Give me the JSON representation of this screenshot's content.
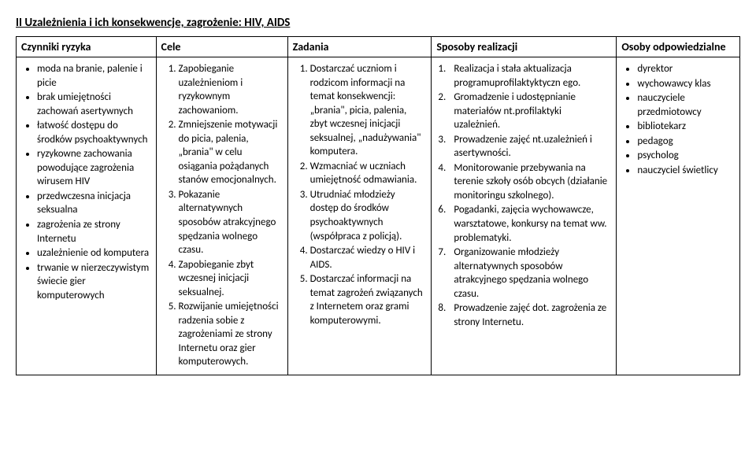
{
  "title": "II Uzależnienia i ich konsekwencje, zagrożenie: HIV, AIDS",
  "headers": {
    "c1": "Czynniki ryzyka",
    "c2": "Cele",
    "c3": "Zadania",
    "c4": "Sposoby realizacji",
    "c5": "Osoby odpowiedzialne"
  },
  "czynniki": [
    "moda na branie, palenie i picie",
    "brak umiejętności zachowań asertywnych",
    "łatwość dostępu do środków psychoaktywnych",
    "ryzykowne zachowania powodujące zagrożenia wirusem HIV",
    "przedwczesna inicjacja seksualna",
    "zagrożenia ze strony Internetu",
    "uzależnienie od komputera",
    "trwanie w nierzeczywistym świecie gier komputerowych"
  ],
  "cele": [
    "Zapobieganie uzależnieniom i ryzykownym zachowaniom.",
    "Zmniejszenie motywacji do picia, palenia, „brania\" w celu osiągania pożądanych stanów emocjonalnych.",
    "Pokazanie alternatywnych sposobów atrakcyjnego spędzania wolnego czasu.",
    "Zapobieganie zbyt wczesnej inicjacji seksualnej.",
    "Rozwijanie umiejętności radzenia sobie z zagrożeniami ze strony Internetu oraz gier komputerowych."
  ],
  "zadania": [
    "Dostarczać uczniom i rodzicom informacji na temat konsekwencji: „brania\", picia, palenia, zbyt wczesnej inicjacji seksualnej, „nadużywania\" komputera.",
    "Wzmacniać w uczniach umiejętność odmawiania.",
    "Utrudniać młodzieży dostęp do środków psychoaktywnych (współpraca z policją).",
    "Dostarczać wiedzy o HIV i AIDS.",
    "Dostarczać informacji na temat zagrożeń związanych z Internetem oraz grami komputerowymi."
  ],
  "sposoby": [
    "Realizacja i stała aktualizacja programuprofilaktyktyczn ego.",
    "Gromadzenie i udostępnianie materiałów nt.profilaktyki uzależnień.",
    "Prowadzenie zajęć nt.uzależnień i asertywności.",
    "Monitorowanie przebywania na terenie szkoły osób obcych (działanie monitoringu szkolnego).",
    "Pogadanki, zajęcia wychowawcze, warsztatowe, konkursy na temat ww. problematyki.",
    "Organizowanie młodzieży alternatywnych sposobów atrakcyjnego spędzania wolnego czasu.",
    "Prowadzenie zajęć dot. zagrożenia ze strony Internetu."
  ],
  "sposoby_numbers": [
    "1",
    "2",
    "3",
    "4",
    "6",
    "7",
    "8"
  ],
  "osoby": [
    "dyrektor",
    "wychowawcy klas",
    "nauczyciele przedmiotowcy",
    "bibliotekarz",
    "pedagog",
    "psycholog",
    "nauczyciel świetlicy"
  ]
}
